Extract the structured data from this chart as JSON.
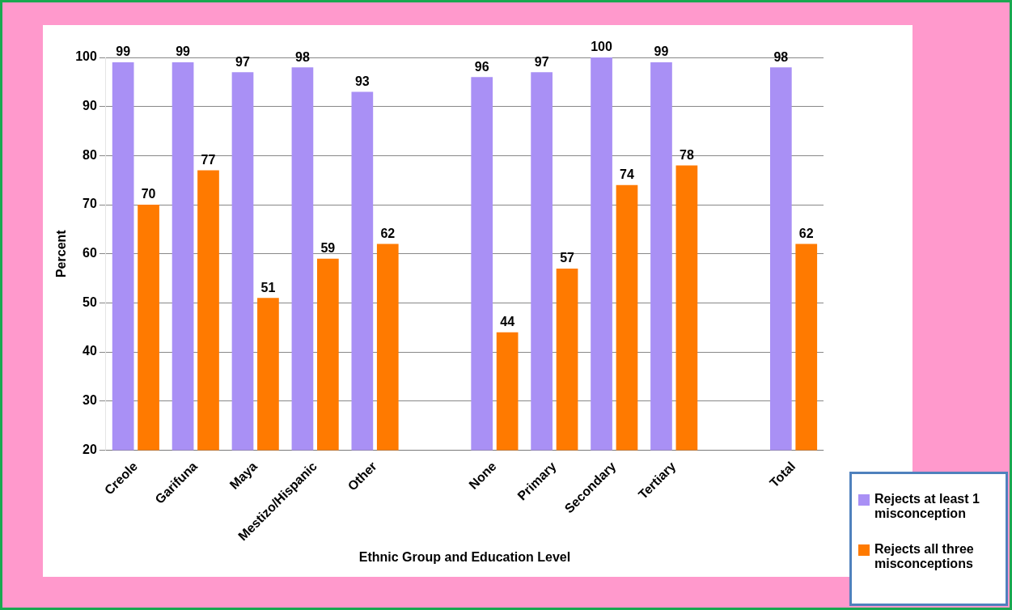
{
  "chart_data": {
    "type": "bar",
    "xlabel": "Ethnic Group and Education Level",
    "ylabel": "Percent",
    "categories": [
      "Creole",
      "Garifuna",
      "Maya",
      "Mestizo/Hispanic",
      "Other",
      null,
      "None",
      "Primary",
      "Secondary",
      "Tertiary",
      null,
      "Total"
    ],
    "series": [
      {
        "name": "Rejects at least 1 misconception",
        "color": "#a990f5",
        "values": [
          99,
          99,
          97,
          98,
          93,
          null,
          96,
          97,
          100,
          99,
          null,
          98
        ]
      },
      {
        "name": "Rejects all three misconceptions",
        "color": "#ff7a00",
        "values": [
          70,
          77,
          51,
          59,
          62,
          null,
          44,
          57,
          74,
          78,
          null,
          62
        ]
      }
    ],
    "ylim": [
      20,
      100
    ],
    "yticks": [
      20,
      30,
      40,
      50,
      60,
      70,
      80,
      90,
      100
    ],
    "grid": "y",
    "legend": "bottom right",
    "data_labels": true
  }
}
